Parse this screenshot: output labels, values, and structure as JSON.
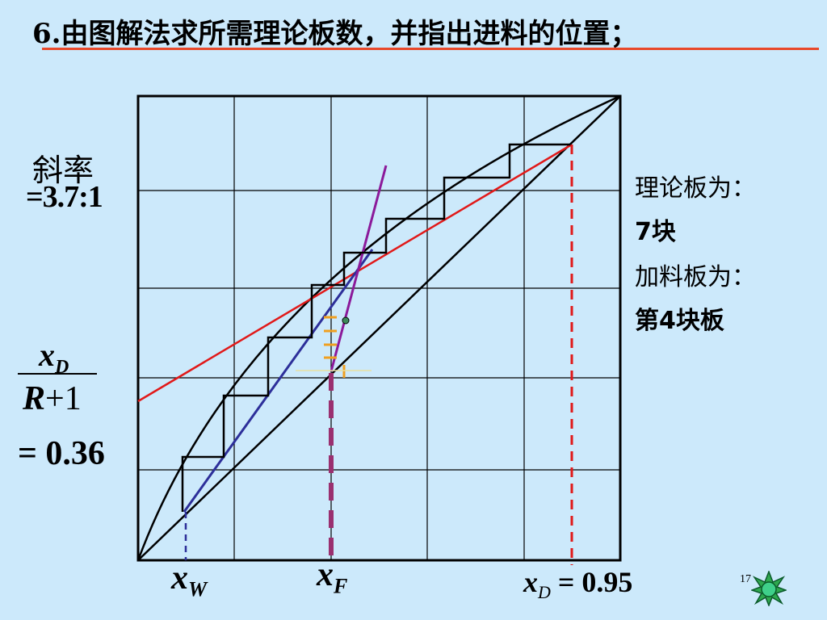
{
  "title": "6.由图解法求所需理论板数，并指出进料的位置；",
  "left_labels": {
    "slope_label": "斜率",
    "slope_value": "=3.7:1",
    "fraction_numerator_var": "x",
    "fraction_numerator_sub": "D",
    "fraction_denominator": "R + 1",
    "fraction_denominator_var": "R",
    "fraction_denominator_rest": "+1",
    "fraction_value": "= 0.36"
  },
  "right_labels": {
    "plates_label": "理论板为：",
    "plates_value": "7块",
    "feed_label": "加料板为：",
    "feed_value": "第4块板"
  },
  "axis_labels": {
    "xw_var": "x",
    "xw_sub": "W",
    "xf_var": "x",
    "xf_sub": "F",
    "xd_var": "x",
    "xd_sub": "D",
    "xd_value": "= 0.95"
  },
  "page_number": "17",
  "nav_icon": "navigation-star-icon",
  "colors": {
    "background": "#cce9fb",
    "rectifying_line": "#e11919",
    "stripping_line": "#2d2f9a",
    "q_line": "#8b1a9a",
    "feed_marker": "#f0a020",
    "xd_dash": "#e11919",
    "xf_dash": "#9a3070",
    "xw_dash": "#2d2f9a",
    "title_rule": "#e8482a"
  }
}
